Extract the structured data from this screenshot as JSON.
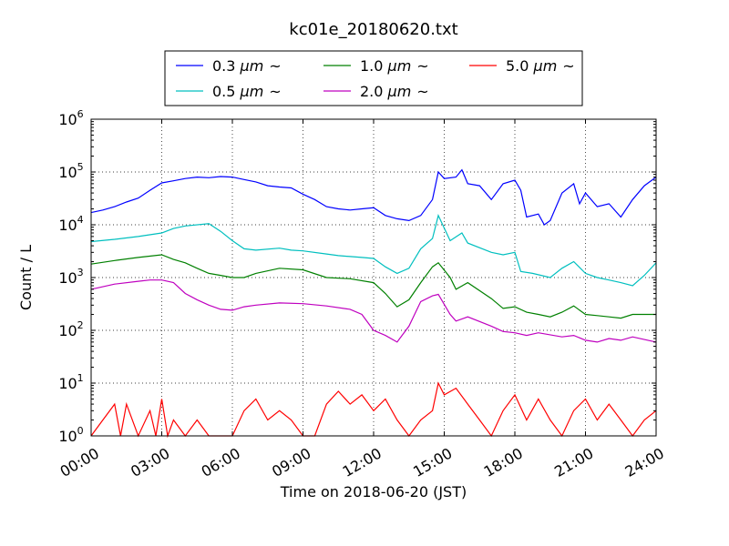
{
  "chart_data": {
    "type": "line",
    "title": "kc01e_20180620.txt",
    "xlabel": "Time on 2018-06-20 (JST)",
    "ylabel": "Count / L",
    "yscale": "log",
    "xlim": [
      "00:00",
      "24:00"
    ],
    "ylim": [
      1,
      1000000
    ],
    "grid": true,
    "legend": "top-center",
    "x_ticks": [
      "00:00",
      "03:00",
      "06:00",
      "09:00",
      "12:00",
      "15:00",
      "18:00",
      "21:00",
      "24:00"
    ],
    "y_ticks": [
      {
        "value": 1,
        "base": "10",
        "exp": "0"
      },
      {
        "value": 10,
        "base": "10",
        "exp": "1"
      },
      {
        "value": 100,
        "base": "10",
        "exp": "2"
      },
      {
        "value": 1000,
        "base": "10",
        "exp": "3"
      },
      {
        "value": 10000,
        "base": "10",
        "exp": "4"
      },
      {
        "value": 100000,
        "base": "10",
        "exp": "5"
      },
      {
        "value": 1000000,
        "base": "10",
        "exp": "6"
      }
    ],
    "series": [
      {
        "name": "0.3 μm ~",
        "label_size": "0.3 ",
        "label_unit": "μm",
        "label_tilde": "~",
        "color": "#0000ff",
        "points": [
          [
            "00:00",
            17000
          ],
          [
            "00:30",
            19000
          ],
          [
            "01:00",
            22000
          ],
          [
            "01:30",
            27000
          ],
          [
            "02:00",
            32000
          ],
          [
            "02:30",
            45000
          ],
          [
            "03:00",
            62000
          ],
          [
            "03:30",
            68000
          ],
          [
            "04:00",
            75000
          ],
          [
            "04:30",
            80000
          ],
          [
            "05:00",
            78000
          ],
          [
            "05:30",
            82000
          ],
          [
            "06:00",
            80000
          ],
          [
            "06:30",
            72000
          ],
          [
            "07:00",
            65000
          ],
          [
            "07:30",
            55000
          ],
          [
            "08:00",
            52000
          ],
          [
            "08:30",
            50000
          ],
          [
            "09:00",
            38000
          ],
          [
            "09:30",
            30000
          ],
          [
            "10:00",
            22000
          ],
          [
            "10:30",
            20000
          ],
          [
            "11:00",
            19000
          ],
          [
            "11:30",
            20000
          ],
          [
            "12:00",
            21000
          ],
          [
            "12:30",
            15000
          ],
          [
            "13:00",
            13000
          ],
          [
            "13:30",
            12000
          ],
          [
            "14:00",
            15000
          ],
          [
            "14:30",
            30000
          ],
          [
            "14:45",
            100000
          ],
          [
            "15:00",
            75000
          ],
          [
            "15:30",
            80000
          ],
          [
            "15:45",
            110000
          ],
          [
            "16:00",
            60000
          ],
          [
            "16:30",
            55000
          ],
          [
            "17:00",
            30000
          ],
          [
            "17:30",
            60000
          ],
          [
            "18:00",
            70000
          ],
          [
            "18:15",
            45000
          ],
          [
            "18:30",
            14000
          ],
          [
            "19:00",
            16000
          ],
          [
            "19:15",
            10000
          ],
          [
            "19:30",
            12000
          ],
          [
            "20:00",
            40000
          ],
          [
            "20:30",
            60000
          ],
          [
            "20:45",
            25000
          ],
          [
            "21:00",
            40000
          ],
          [
            "21:30",
            22000
          ],
          [
            "22:00",
            25000
          ],
          [
            "22:30",
            14000
          ],
          [
            "23:00",
            30000
          ],
          [
            "23:30",
            55000
          ],
          [
            "24:00",
            80000
          ]
        ]
      },
      {
        "name": "0.5 μm ~",
        "label_size": "0.5 ",
        "label_unit": "μm",
        "label_tilde": "~",
        "color": "#00bfbf",
        "points": [
          [
            "00:00",
            4800
          ],
          [
            "01:00",
            5300
          ],
          [
            "02:00",
            6000
          ],
          [
            "03:00",
            7000
          ],
          [
            "03:30",
            8500
          ],
          [
            "04:00",
            9500
          ],
          [
            "05:00",
            10500
          ],
          [
            "05:30",
            7500
          ],
          [
            "06:00",
            5000
          ],
          [
            "06:30",
            3500
          ],
          [
            "07:00",
            3300
          ],
          [
            "08:00",
            3600
          ],
          [
            "08:30",
            3300
          ],
          [
            "09:00",
            3200
          ],
          [
            "10:00",
            2800
          ],
          [
            "10:30",
            2600
          ],
          [
            "11:00",
            2500
          ],
          [
            "11:30",
            2400
          ],
          [
            "12:00",
            2300
          ],
          [
            "12:30",
            1600
          ],
          [
            "13:00",
            1200
          ],
          [
            "13:30",
            1500
          ],
          [
            "14:00",
            3500
          ],
          [
            "14:30",
            5500
          ],
          [
            "14:45",
            15000
          ],
          [
            "15:15",
            5000
          ],
          [
            "15:45",
            7000
          ],
          [
            "16:00",
            4500
          ],
          [
            "17:00",
            3000
          ],
          [
            "17:30",
            2700
          ],
          [
            "18:00",
            3000
          ],
          [
            "18:15",
            1300
          ],
          [
            "18:45",
            1200
          ],
          [
            "19:30",
            1000
          ],
          [
            "20:00",
            1500
          ],
          [
            "20:30",
            2000
          ],
          [
            "21:00",
            1200
          ],
          [
            "21:30",
            1000
          ],
          [
            "22:00",
            900
          ],
          [
            "22:30",
            800
          ],
          [
            "23:00",
            700
          ],
          [
            "23:30",
            1100
          ],
          [
            "24:00",
            1900
          ]
        ]
      },
      {
        "name": "1.0 μm ~",
        "label_size": "1.0 ",
        "label_unit": "μm",
        "label_tilde": "~",
        "color": "#008000",
        "points": [
          [
            "00:00",
            1800
          ],
          [
            "01:00",
            2100
          ],
          [
            "02:00",
            2400
          ],
          [
            "03:00",
            2700
          ],
          [
            "03:30",
            2200
          ],
          [
            "04:00",
            1900
          ],
          [
            "04:30",
            1500
          ],
          [
            "05:00",
            1200
          ],
          [
            "05:30",
            1100
          ],
          [
            "06:00",
            1000
          ],
          [
            "06:30",
            1000
          ],
          [
            "07:00",
            1200
          ],
          [
            "08:00",
            1500
          ],
          [
            "09:00",
            1400
          ],
          [
            "10:00",
            1000
          ],
          [
            "11:00",
            950
          ],
          [
            "12:00",
            800
          ],
          [
            "12:30",
            500
          ],
          [
            "13:00",
            280
          ],
          [
            "13:30",
            380
          ],
          [
            "14:00",
            800
          ],
          [
            "14:30",
            1600
          ],
          [
            "14:45",
            1900
          ],
          [
            "15:15",
            1000
          ],
          [
            "15:30",
            600
          ],
          [
            "16:00",
            800
          ],
          [
            "17:00",
            400
          ],
          [
            "17:30",
            260
          ],
          [
            "18:00",
            280
          ],
          [
            "18:30",
            220
          ],
          [
            "19:00",
            200
          ],
          [
            "19:30",
            180
          ],
          [
            "20:00",
            220
          ],
          [
            "20:30",
            290
          ],
          [
            "21:00",
            200
          ],
          [
            "21:30",
            190
          ],
          [
            "22:00",
            180
          ],
          [
            "22:30",
            170
          ],
          [
            "23:00",
            200
          ],
          [
            "24:00",
            200
          ]
        ]
      },
      {
        "name": "2.0 μm ~",
        "label_size": "2.0 ",
        "label_unit": "μm",
        "label_tilde": "~",
        "color": "#bf00bf",
        "points": [
          [
            "00:00",
            600
          ],
          [
            "01:00",
            750
          ],
          [
            "02:00",
            850
          ],
          [
            "02:30",
            900
          ],
          [
            "03:00",
            900
          ],
          [
            "03:30",
            800
          ],
          [
            "04:00",
            500
          ],
          [
            "04:30",
            380
          ],
          [
            "05:00",
            300
          ],
          [
            "05:30",
            250
          ],
          [
            "06:00",
            240
          ],
          [
            "06:30",
            280
          ],
          [
            "07:00",
            300
          ],
          [
            "08:00",
            330
          ],
          [
            "09:00",
            320
          ],
          [
            "10:00",
            290
          ],
          [
            "11:00",
            250
          ],
          [
            "11:30",
            200
          ],
          [
            "12:00",
            100
          ],
          [
            "12:30",
            80
          ],
          [
            "13:00",
            60
          ],
          [
            "13:30",
            120
          ],
          [
            "14:00",
            350
          ],
          [
            "14:30",
            450
          ],
          [
            "14:45",
            480
          ],
          [
            "15:15",
            200
          ],
          [
            "15:30",
            150
          ],
          [
            "16:00",
            180
          ],
          [
            "17:00",
            120
          ],
          [
            "17:30",
            95
          ],
          [
            "18:00",
            90
          ],
          [
            "18:30",
            80
          ],
          [
            "19:00",
            90
          ],
          [
            "20:00",
            75
          ],
          [
            "20:30",
            80
          ],
          [
            "21:00",
            65
          ],
          [
            "21:30",
            60
          ],
          [
            "22:00",
            70
          ],
          [
            "22:30",
            65
          ],
          [
            "23:00",
            75
          ],
          [
            "24:00",
            60
          ]
        ]
      },
      {
        "name": "5.0 μm ~",
        "label_size": "5.0 ",
        "label_unit": "μm",
        "label_tilde": "~",
        "color": "#ff0000",
        "points": [
          [
            "00:00",
            1
          ],
          [
            "00:30",
            2
          ],
          [
            "01:00",
            4
          ],
          [
            "01:15",
            1
          ],
          [
            "01:30",
            4
          ],
          [
            "02:00",
            1
          ],
          [
            "02:30",
            3
          ],
          [
            "02:45",
            1
          ],
          [
            "03:00",
            5
          ],
          [
            "03:15",
            1
          ],
          [
            "03:30",
            2
          ],
          [
            "04:00",
            1
          ],
          [
            "04:30",
            2
          ],
          [
            "05:00",
            1
          ],
          [
            "05:30",
            1
          ],
          [
            "06:00",
            1
          ],
          [
            "06:30",
            3
          ],
          [
            "07:00",
            5
          ],
          [
            "07:30",
            2
          ],
          [
            "08:00",
            3
          ],
          [
            "08:30",
            2
          ],
          [
            "09:00",
            1
          ],
          [
            "09:30",
            1
          ],
          [
            "10:00",
            4
          ],
          [
            "10:30",
            7
          ],
          [
            "11:00",
            4
          ],
          [
            "11:30",
            6
          ],
          [
            "12:00",
            3
          ],
          [
            "12:30",
            5
          ],
          [
            "13:00",
            2
          ],
          [
            "13:30",
            1
          ],
          [
            "14:00",
            2
          ],
          [
            "14:30",
            3
          ],
          [
            "14:45",
            10
          ],
          [
            "15:00",
            6
          ],
          [
            "15:30",
            8
          ],
          [
            "16:00",
            4
          ],
          [
            "16:30",
            2
          ],
          [
            "17:00",
            1
          ],
          [
            "17:30",
            3
          ],
          [
            "18:00",
            6
          ],
          [
            "18:30",
            2
          ],
          [
            "19:00",
            5
          ],
          [
            "19:30",
            2
          ],
          [
            "20:00",
            1
          ],
          [
            "20:30",
            3
          ],
          [
            "21:00",
            5
          ],
          [
            "21:30",
            2
          ],
          [
            "22:00",
            4
          ],
          [
            "22:30",
            2
          ],
          [
            "23:00",
            1
          ],
          [
            "23:30",
            2
          ],
          [
            "24:00",
            3
          ]
        ]
      }
    ]
  }
}
